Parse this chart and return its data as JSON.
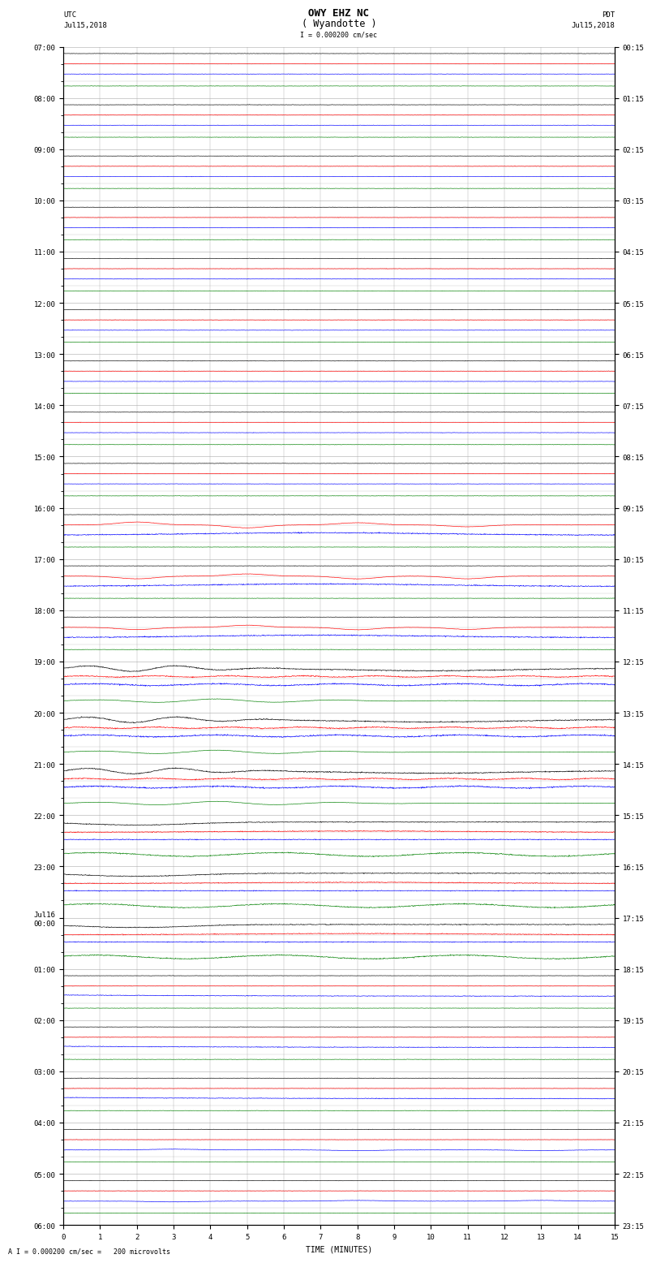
{
  "title_line1": "OWY EHZ NC",
  "title_line2": "( Wyandotte )",
  "scale_label": "I = 0.000200 cm/sec",
  "footer_label": "A I = 0.000200 cm/sec =   200 microvolts",
  "utc_label": "UTC",
  "utc_date": "Jul15,2018",
  "pdt_label": "PDT",
  "pdt_date": "Jul15,2018",
  "xlabel": "TIME (MINUTES)",
  "n_rows": 69,
  "n_cols": 15,
  "bg_color": "#ffffff",
  "grid_color": "#aaaaaa",
  "fig_width": 8.5,
  "fig_height": 16.13,
  "title_fontsize": 9,
  "label_fontsize": 7,
  "tick_fontsize": 6.5,
  "left_times_major": [
    "07:00",
    "08:00",
    "09:00",
    "10:00",
    "11:00",
    "12:00",
    "13:00",
    "14:00",
    "15:00",
    "16:00",
    "17:00",
    "18:00",
    "19:00",
    "20:00",
    "21:00",
    "22:00",
    "23:00",
    "Jul16\n00:00",
    "01:00",
    "02:00",
    "03:00",
    "04:00",
    "05:00",
    "06:00"
  ],
  "right_times_major": [
    "00:15",
    "01:15",
    "02:15",
    "03:15",
    "04:15",
    "05:15",
    "06:15",
    "07:15",
    "08:15",
    "09:15",
    "10:15",
    "11:15",
    "12:15",
    "13:15",
    "14:15",
    "15:15",
    "16:15",
    "17:15",
    "18:15",
    "19:15",
    "20:15",
    "21:15",
    "22:15",
    "23:15"
  ]
}
